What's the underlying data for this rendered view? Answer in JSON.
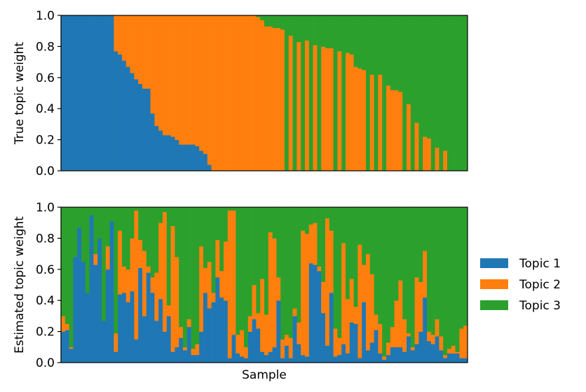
{
  "chart_data": [
    {
      "type": "bar",
      "stacked": true,
      "ylabel": "True topic weight",
      "xlabel": "",
      "ylim": [
        0,
        1
      ],
      "yticks": [
        "0.0",
        "0.2",
        "0.4",
        "0.6",
        "0.8",
        "1.0"
      ],
      "x_ticks_visible": false,
      "n_samples": 100,
      "series": [
        {
          "name": "Topic 1",
          "color": "#1f77b4",
          "values": [
            1,
            1,
            1,
            1,
            1,
            1,
            1,
            1,
            1,
            1,
            1,
            1,
            1,
            0.77,
            0.75,
            0.71,
            0.67,
            0.63,
            0.59,
            0.56,
            0.53,
            0.53,
            0.37,
            0.29,
            0.26,
            0.23,
            0.23,
            0.22,
            0.2,
            0.17,
            0.17,
            0.17,
            0.17,
            0.16,
            0.13,
            0.11,
            0.04,
            0,
            0,
            0,
            0,
            0,
            0,
            0,
            0,
            0,
            0,
            0,
            0,
            0,
            0,
            0,
            0,
            0,
            0,
            0,
            0,
            0,
            0,
            0,
            0,
            0,
            0,
            0,
            0,
            0,
            0,
            0,
            0,
            0,
            0,
            0,
            0,
            0,
            0,
            0,
            0,
            0,
            0,
            0,
            0,
            0,
            0,
            0,
            0,
            0,
            0,
            0,
            0,
            0,
            0,
            0,
            0,
            0,
            0,
            0,
            0,
            0,
            0,
            0
          ]
        },
        {
          "name": "Topic 2",
          "color": "#ff7f0e",
          "values": [
            0,
            0,
            0,
            0,
            0,
            0,
            0,
            0,
            0,
            0,
            0,
            0,
            0,
            0.23,
            0.25,
            0.29,
            0.33,
            0.37,
            0.41,
            0.44,
            0.47,
            0.47,
            0.63,
            0.71,
            0.74,
            0.77,
            0.77,
            0.78,
            0.8,
            0.83,
            0.83,
            0.83,
            0.83,
            0.84,
            0.87,
            0.89,
            0.96,
            1,
            1,
            1,
            1,
            1,
            1,
            1,
            1,
            1,
            1,
            1,
            0.99,
            0.97,
            0.93,
            0.93,
            0.92,
            0.92,
            0.91,
            0,
            0.87,
            0,
            0.83,
            0,
            0.84,
            0,
            0.81,
            0,
            0.8,
            0.79,
            0.79,
            0,
            0.77,
            0,
            0.76,
            0.75,
            0.67,
            0.66,
            0.65,
            0,
            0.62,
            0,
            0.62,
            0,
            0.55,
            0.52,
            0.52,
            0.51,
            0,
            0.43,
            0,
            0.31,
            0,
            0.22,
            0.21,
            0,
            0.15,
            0,
            0.13,
            0,
            0,
            0,
            0,
            0
          ]
        },
        {
          "name": "Topic 3",
          "color": "#2ca02c",
          "values": [
            0,
            0,
            0,
            0,
            0,
            0,
            0,
            0,
            0,
            0,
            0,
            0,
            0,
            0,
            0,
            0,
            0,
            0,
            0,
            0,
            0,
            0,
            0,
            0,
            0,
            0,
            0,
            0,
            0,
            0,
            0,
            0,
            0,
            0,
            0,
            0,
            0,
            0,
            0,
            0,
            0,
            0,
            0,
            0,
            0,
            0,
            0,
            0,
            0.01,
            0.03,
            0.07,
            0.07,
            0.08,
            0.08,
            0.09,
            1,
            0.13,
            1,
            0.17,
            1,
            0.16,
            1,
            0.19,
            1,
            0.2,
            0.21,
            0.21,
            1,
            0.23,
            1,
            0.24,
            0.25,
            0.33,
            0.34,
            0.35,
            1,
            0.38,
            1,
            0.38,
            1,
            0.45,
            0.48,
            0.48,
            0.49,
            1,
            0.57,
            1,
            0.69,
            1,
            0.78,
            0.79,
            1,
            0.85,
            1,
            0.87,
            1,
            1,
            1,
            1,
            1
          ]
        }
      ]
    },
    {
      "type": "bar",
      "stacked": true,
      "ylabel": "Estimated topic weight",
      "xlabel": "Sample",
      "ylim": [
        0,
        1
      ],
      "yticks": [
        "0.0",
        "0.2",
        "0.4",
        "0.6",
        "0.8",
        "1.0"
      ],
      "x_ticks_visible": false,
      "n_samples": 100,
      "series": [
        {
          "name": "Topic 1",
          "color": "#1f77b4",
          "values": [
            0.2,
            0.21,
            0.09,
            0.68,
            0.87,
            0.65,
            0.45,
            0.95,
            0.63,
            0.8,
            0.27,
            0.6,
            0.91,
            0.07,
            0.44,
            0.45,
            0.39,
            0.46,
            0.15,
            0.61,
            0.3,
            0.58,
            0.45,
            0.27,
            0.41,
            0.2,
            0.3,
            0.07,
            0.1,
            0.16,
            0.08,
            0.23,
            0.05,
            0.05,
            0.2,
            0.45,
            0.35,
            0.39,
            0.55,
            0.42,
            0.4,
            0.03,
            0.18,
            0.06,
            0.04,
            0.03,
            0.2,
            0.28,
            0.22,
            0.07,
            0.05,
            0.07,
            0.1,
            0.4,
            0.03,
            0.11,
            0.03,
            0.3,
            0.12,
            0.05,
            0.04,
            0.64,
            0.63,
            0.59,
            0.32,
            0.11,
            0.45,
            0.04,
            0.05,
            0.12,
            0.06,
            0.26,
            0.25,
            0.03,
            0.39,
            0.08,
            0.13,
            0.21,
            0.06,
            0.02,
            0.05,
            0.1,
            0.1,
            0.1,
            0.07,
            0.17,
            0.08,
            0.12,
            0.2,
            0.42,
            0.14,
            0.12,
            0.17,
            0.08,
            0.03,
            0.06,
            0.06,
            0.06,
            0.03,
            0.03
          ]
        },
        {
          "name": "Topic 2",
          "color": "#ff7f0e",
          "values": [
            0.1,
            0.04,
            0.01,
            0,
            0,
            0,
            0,
            0,
            0.07,
            0,
            0,
            0.15,
            0,
            0.12,
            0.41,
            0.17,
            0.21,
            0.34,
            0.83,
            0.18,
            0.42,
            0.04,
            0.1,
            0.31,
            0.49,
            0.77,
            0.07,
            0.81,
            0.58,
            0.07,
            0.02,
            0.05,
            0.04,
            0.07,
            0.55,
            0.16,
            0.3,
            0.06,
            0.24,
            0.17,
            0.38,
            0.95,
            0.8,
            0.12,
            0.17,
            0.07,
            0.1,
            0.22,
            0.1,
            0.47,
            0.26,
            0.77,
            0.7,
            0.15,
            0.12,
            0.07,
            0.13,
            0.05,
            0.14,
            0.8,
            0.79,
            0.25,
            0.27,
            0.03,
            0.2,
            0.82,
            0.4,
            0.18,
            0.11,
            0.65,
            0.35,
            0.28,
            0.11,
            0.73,
            0.24,
            0.62,
            0.44,
            0.1,
            0.19,
            0.02,
            0.08,
            0.13,
            0.3,
            0.43,
            0.21,
            0.02,
            0.02,
            0.43,
            0.32,
            0.3,
            0.06,
            0.06,
            0.11,
            0.09,
            0.02,
            0.03,
            0.05,
            0.01,
            0.19,
            0.21
          ]
        },
        {
          "name": "Topic 3",
          "color": "#2ca02c",
          "values": [
            0.7,
            0.75,
            0.9,
            0.32,
            0.13,
            0.35,
            0.55,
            0.05,
            0.3,
            0.2,
            0.73,
            0.25,
            0.09,
            0.81,
            0.15,
            0.38,
            0.4,
            0.2,
            0.02,
            0.21,
            0.28,
            0.38,
            0.45,
            0.42,
            0.1,
            0.03,
            0.63,
            0.12,
            0.32,
            0.77,
            0.9,
            0.72,
            0.91,
            0.88,
            0.25,
            0.39,
            0.35,
            0.55,
            0.21,
            0.41,
            0.22,
            0.02,
            0.02,
            0.82,
            0.79,
            0.9,
            0.7,
            0.5,
            0.68,
            0.46,
            0.69,
            0.16,
            0.2,
            0.45,
            0.85,
            0.82,
            0.84,
            0.65,
            0.74,
            0.15,
            0.17,
            0.11,
            0.1,
            0.38,
            0.48,
            0.07,
            0.15,
            0.78,
            0.84,
            0.23,
            0.59,
            0.46,
            0.64,
            0.24,
            0.37,
            0.3,
            0.43,
            0.69,
            0.75,
            0.96,
            0.87,
            0.77,
            0.6,
            0.47,
            0.72,
            0.81,
            0.9,
            0.45,
            0.48,
            0.28,
            0.8,
            0.82,
            0.72,
            0.83,
            0.95,
            0.91,
            0.89,
            0.93,
            0.78,
            0.76
          ]
        }
      ]
    }
  ],
  "legend": {
    "position": "right",
    "items": [
      {
        "label": "Topic 1",
        "color": "#1f77b4"
      },
      {
        "label": "Topic 2",
        "color": "#ff7f0e"
      },
      {
        "label": "Topic 3",
        "color": "#2ca02c"
      }
    ]
  }
}
